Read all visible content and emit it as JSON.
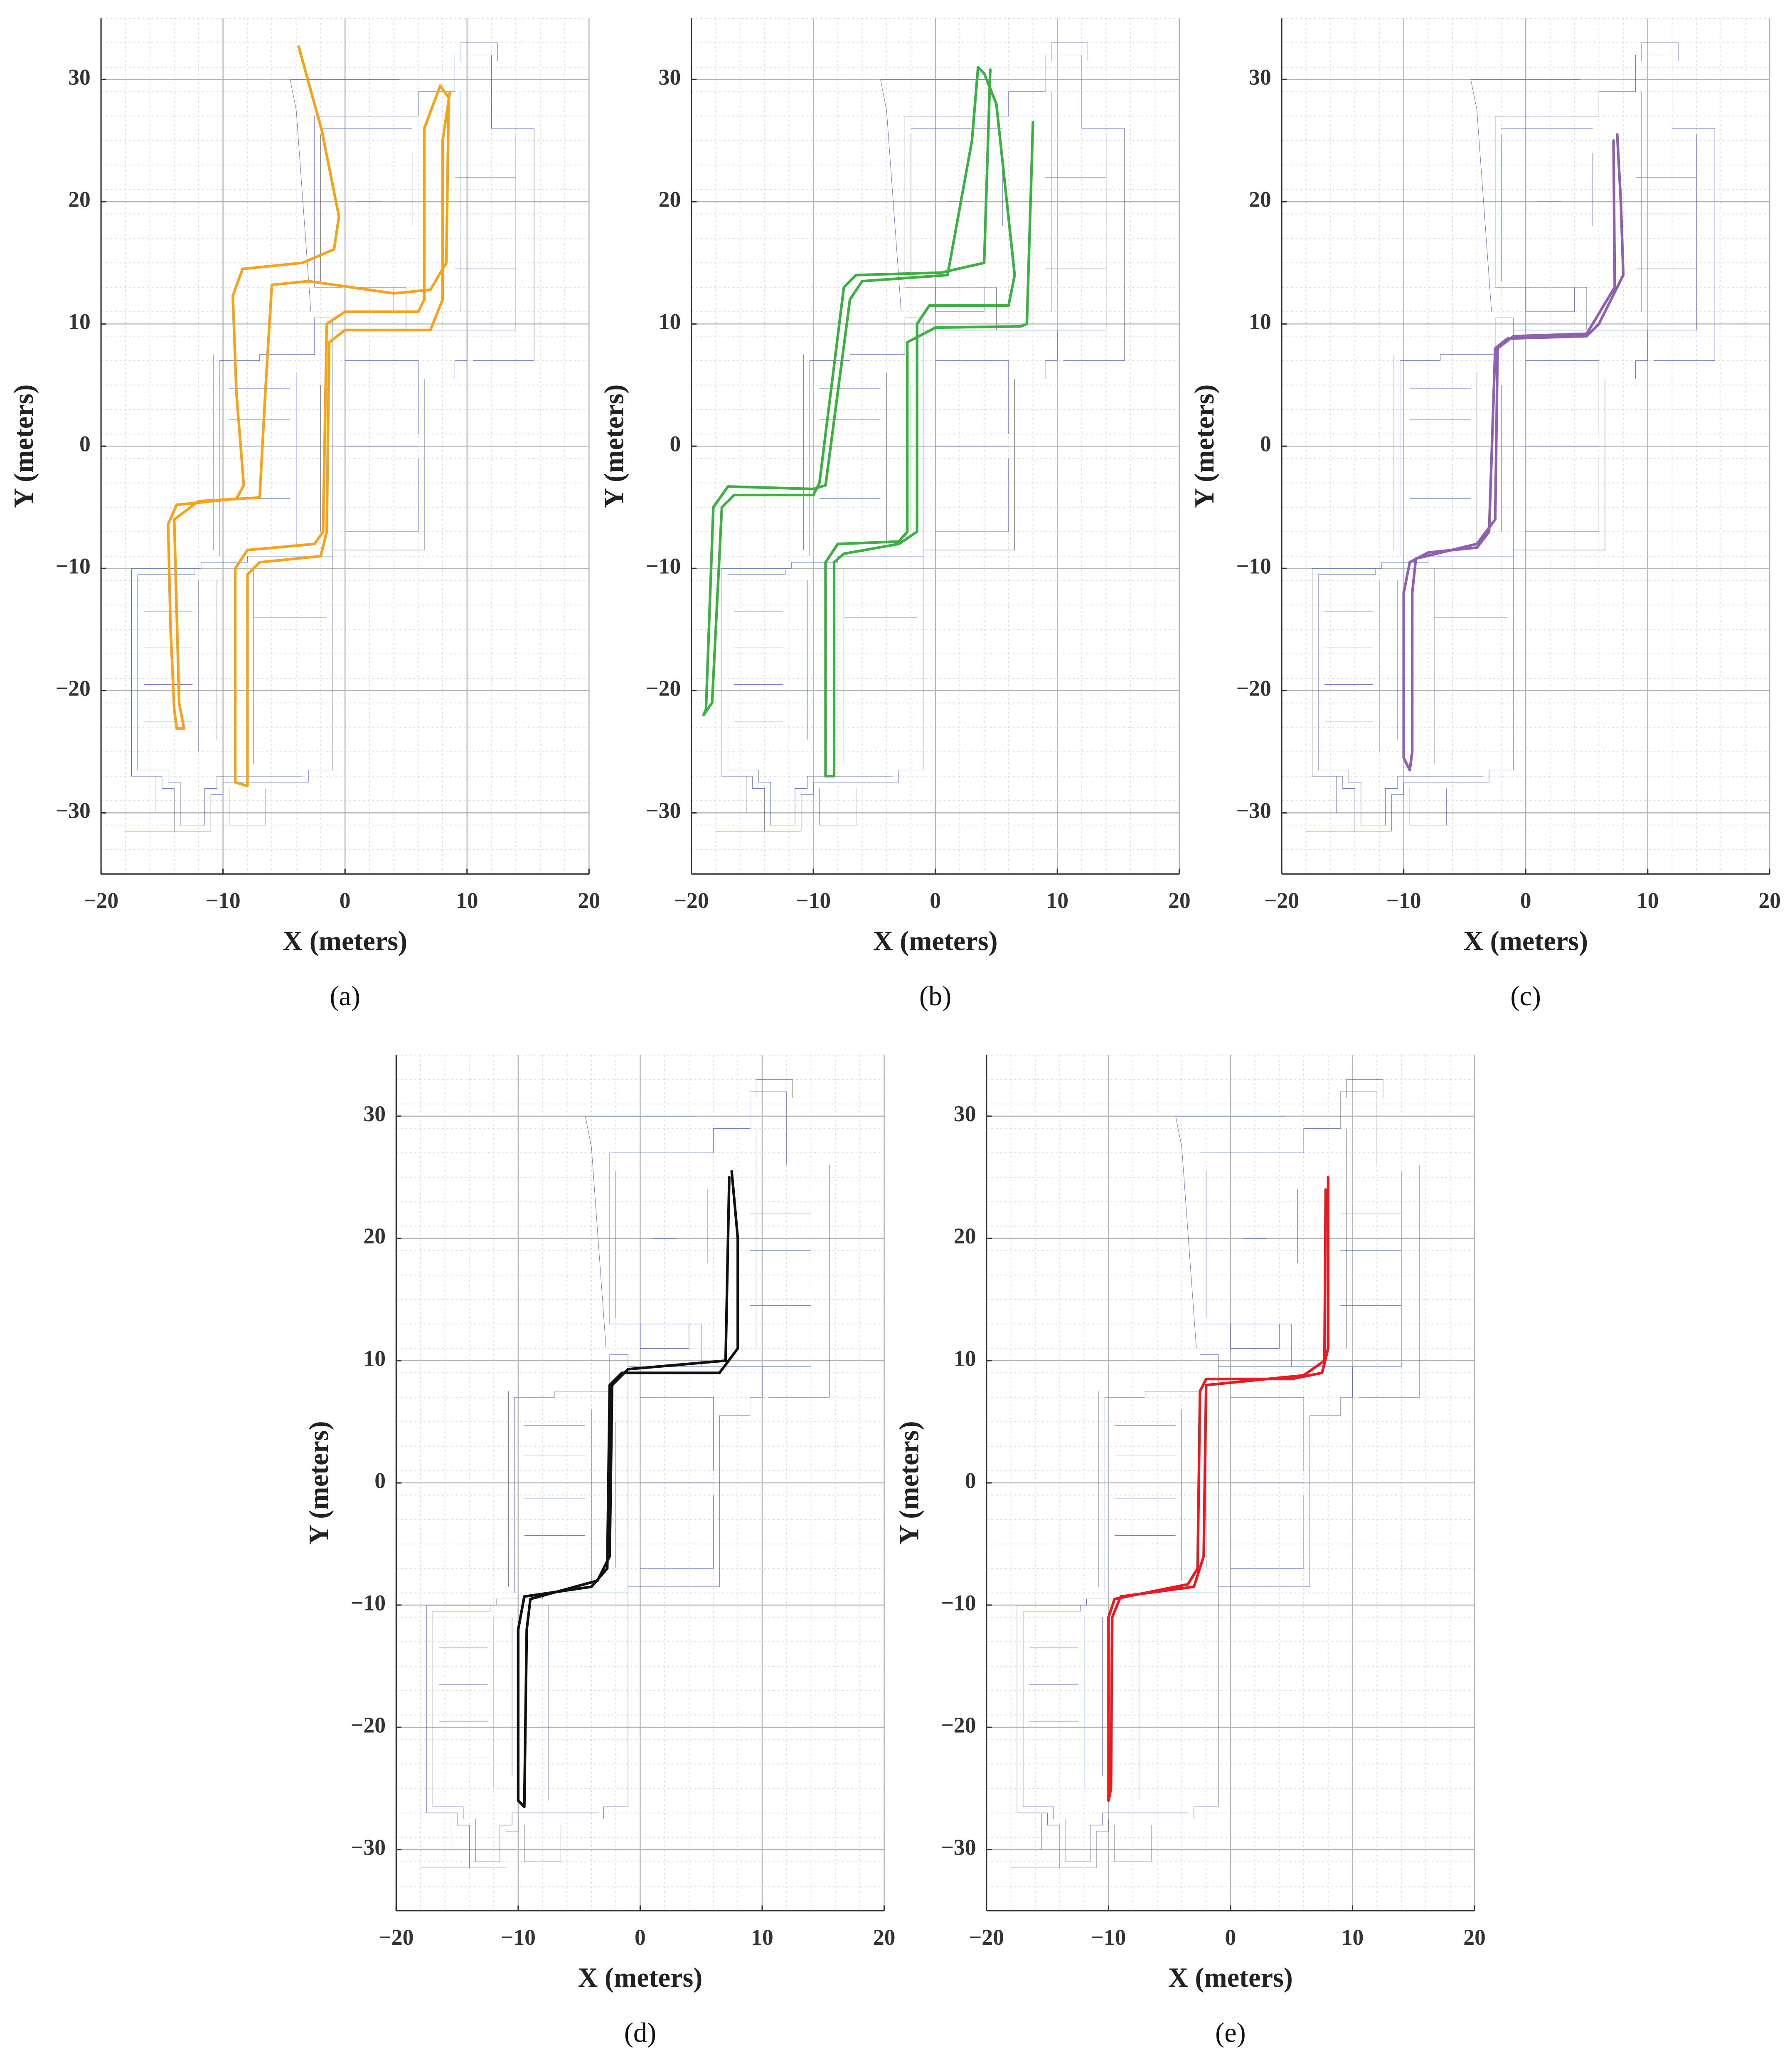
{
  "chart_data": [
    {
      "type": "line",
      "caption": "(a)",
      "xlabel": "X (meters)",
      "ylabel": "Y (meters)",
      "grid": true,
      "xlim": [
        -20,
        20
      ],
      "ylim": [
        -35,
        35
      ],
      "xticks": [
        {
          "value": -20,
          "label": "−20"
        },
        {
          "value": -10,
          "label": "−10"
        },
        0,
        10,
        20
      ],
      "yticks": [
        {
          "value": -30,
          "label": "−30"
        },
        {
          "value": -20,
          "label": "−20"
        },
        {
          "value": -10,
          "label": "−10"
        },
        0,
        10,
        20,
        30
      ],
      "series": [
        {
          "color": "#f5a31a",
          "x": [
            -3.8,
            -1.9,
            -0.5,
            -0.9,
            -3.5,
            -8.4,
            -9.2,
            -8.9,
            -8.3,
            -8.9,
            -13.8,
            -14.5,
            -14.3,
            -14,
            -13.8,
            -13.2,
            -13.6,
            -14,
            -12,
            -7,
            -6.5,
            -6,
            -3,
            4,
            7,
            8.3,
            8.5,
            7.8,
            6.5,
            6.5,
            6,
            0,
            -1.5,
            -1.8,
            -2.5,
            -8,
            -9,
            -9,
            -8,
            -8,
            -7,
            -2,
            -1.5,
            -1.3,
            0,
            7,
            8,
            8,
            8.6
          ],
          "values": [
            32.7,
            25.8,
            18.8,
            16.1,
            15,
            14.5,
            12.3,
            4.3,
            -3.2,
            -4.3,
            -4.8,
            -6.4,
            -15,
            -21.5,
            -23.1,
            -23.1,
            -21,
            -6,
            -4.5,
            -4.2,
            5,
            13.2,
            13.5,
            12.5,
            12.8,
            15,
            28.5,
            29.5,
            26,
            12,
            11,
            11,
            10,
            -7,
            -8,
            -8.5,
            -10,
            -27.5,
            -27.8,
            -10.5,
            -9.5,
            -9,
            -7,
            8.5,
            9.5,
            9.5,
            12,
            25,
            29
          ]
        }
      ]
    },
    {
      "type": "line",
      "caption": "(b)",
      "xlabel": "X (meters)",
      "ylabel": "Y (meters)",
      "grid": true,
      "xlim": [
        -20,
        20
      ],
      "ylim": [
        -35,
        35
      ],
      "xticks": [
        {
          "value": -20,
          "label": "−20"
        },
        {
          "value": -10,
          "label": "−10"
        },
        0,
        10,
        20
      ],
      "yticks": [
        {
          "value": -30,
          "label": "−30"
        },
        {
          "value": -20,
          "label": "−20"
        },
        {
          "value": -10,
          "label": "−10"
        },
        0,
        10,
        20,
        30
      ],
      "series": [
        {
          "color": "#3cb043",
          "x": [
            8,
            7.5,
            7,
            0,
            -2.3,
            -2.3,
            -3,
            -8,
            -9,
            -9,
            -8.3,
            -8.3,
            -7.5,
            -3,
            -1.5,
            -1.5,
            -0.5,
            6,
            6.5,
            5,
            4,
            3.5,
            3,
            1,
            -6,
            -7,
            -9,
            -10,
            -17,
            -18.2,
            -18.8,
            -19,
            -18.3,
            -17.5,
            -16.5,
            -10,
            -9.5,
            -7.5,
            -6.5,
            0.5,
            4,
            4.5
          ],
          "values": [
            26.5,
            10,
            9.8,
            9.7,
            8.5,
            -7,
            -7.8,
            -8,
            -9.5,
            -27,
            -27,
            -9.5,
            -8.8,
            -8,
            -7,
            10,
            11.5,
            11.5,
            14,
            28,
            30.5,
            31,
            25,
            14,
            13.5,
            12,
            -3.2,
            -3.5,
            -3.3,
            -5,
            -21.5,
            -22,
            -21,
            -5,
            -4,
            -4,
            -3,
            13,
            14,
            14.2,
            15,
            30.8
          ]
        }
      ]
    },
    {
      "type": "line",
      "caption": "(c)",
      "xlabel": "X (meters)",
      "ylabel": "Y (meters)",
      "grid": true,
      "xlim": [
        -20,
        20
      ],
      "ylim": [
        -35,
        35
      ],
      "xticks": [
        {
          "value": -20,
          "label": "−20"
        },
        {
          "value": -10,
          "label": "−10"
        },
        0,
        10,
        20
      ],
      "yticks": [
        {
          "value": -30,
          "label": "−30"
        },
        {
          "value": -20,
          "label": "−20"
        },
        {
          "value": -10,
          "label": "−10"
        },
        0,
        10,
        20,
        30
      ],
      "series": [
        {
          "color": "#9060b0",
          "x": [
            7.5,
            7.8,
            8,
            6,
            5,
            -1.5,
            -2.5,
            -3,
            -4,
            -8,
            -9.5,
            -10,
            -10,
            -9.5,
            -9.3,
            -9.3,
            -9,
            -4,
            -2.5,
            -2.3,
            -1,
            5,
            7.3,
            7.2
          ],
          "values": [
            25.5,
            20,
            14,
            10,
            9,
            8.8,
            8,
            -7,
            -8.3,
            -8.7,
            -9.5,
            -12,
            -25.5,
            -26.5,
            -25,
            -12,
            -9.2,
            -8,
            -6,
            8,
            9,
            9.2,
            13,
            25
          ]
        }
      ]
    },
    {
      "type": "line",
      "caption": "(d)",
      "xlabel": "X (meters)",
      "ylabel": "Y (meters)",
      "grid": true,
      "xlim": [
        -20,
        20
      ],
      "ylim": [
        -35,
        35
      ],
      "xticks": [
        {
          "value": -20,
          "label": "−20"
        },
        {
          "value": -10,
          "label": "−10"
        },
        0,
        10,
        20
      ],
      "yticks": [
        {
          "value": -30,
          "label": "−30"
        },
        {
          "value": -20,
          "label": "−20"
        },
        {
          "value": -10,
          "label": "−10"
        },
        0,
        10,
        20,
        30
      ],
      "series": [
        {
          "color": "#111111",
          "x": [
            7.5,
            8,
            8,
            6.5,
            -1.5,
            -2.5,
            -2.7,
            -4,
            -9.5,
            -10,
            -10,
            -9.5,
            -9.3,
            -9,
            -3.5,
            -2.5,
            -2.3,
            -1,
            7,
            7.3
          ],
          "values": [
            25.5,
            20,
            11,
            9,
            9,
            8,
            -7,
            -8.5,
            -9.3,
            -12,
            -26,
            -26.5,
            -12,
            -9.5,
            -8,
            -6,
            8,
            9.3,
            10,
            25
          ]
        }
      ]
    },
    {
      "type": "line",
      "caption": "(e)",
      "xlabel": "X (meters)",
      "ylabel": "Y (meters)",
      "grid": true,
      "xlim": [
        -20,
        20
      ],
      "ylim": [
        -35,
        35
      ],
      "xticks": [
        {
          "value": -20,
          "label": "−20"
        },
        {
          "value": -10,
          "label": "−10"
        },
        0,
        10,
        20
      ],
      "yticks": [
        {
          "value": -30,
          "label": "−30"
        },
        {
          "value": -20,
          "label": "−20"
        },
        {
          "value": -10,
          "label": "−10"
        },
        0,
        10,
        20,
        30
      ],
      "series": [
        {
          "color": "#e8191f",
          "x": [
            8,
            8,
            7.5,
            5,
            -2,
            -2.5,
            -2.7,
            -3.5,
            -9.5,
            -10,
            -10,
            -9.8,
            -9.7,
            -9,
            -3,
            -2.2,
            -2,
            6,
            7.7,
            7.8
          ],
          "values": [
            25,
            11,
            9,
            8.5,
            8.5,
            7.5,
            -7,
            -8.3,
            -9.5,
            -11,
            -26,
            -25,
            -11,
            -9.3,
            -8.5,
            -6,
            8,
            8.8,
            10,
            24
          ]
        }
      ]
    }
  ]
}
